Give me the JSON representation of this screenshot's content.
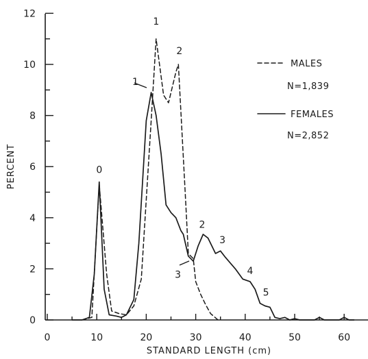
{
  "chart_data": {
    "type": "line",
    "xlabel": "STANDARD  LENGTH  (cm)",
    "ylabel": "PERCENT",
    "xlim": [
      0,
      63
    ],
    "ylim": [
      0,
      12
    ],
    "x_ticks": [
      "0",
      "10",
      "20",
      "30",
      "40",
      "50",
      "60"
    ],
    "y_ticks": [
      "0",
      "2",
      "4",
      "6",
      "8",
      "10",
      "12"
    ],
    "series": [
      {
        "name": "MALES",
        "style": "dashed",
        "x": [
          7,
          9,
          10.5,
          12,
          13,
          14.5,
          16,
          17.5,
          19,
          21,
          22,
          23.5,
          24.5,
          26,
          26.5,
          28,
          28.5,
          29.5,
          30,
          31,
          32,
          33,
          34.5
        ],
        "y": [
          0,
          0.1,
          5.3,
          1.8,
          0.35,
          0.25,
          0.2,
          0.55,
          1.6,
          7.8,
          11.0,
          8.8,
          8.5,
          9.7,
          10.0,
          4.5,
          2.6,
          2.4,
          1.5,
          1.0,
          0.6,
          0.25,
          0
        ]
      },
      {
        "name": "FEMALES",
        "style": "solid",
        "x": [
          5,
          7,
          8.5,
          9.5,
          10.5,
          11.5,
          12.5,
          14,
          15,
          16,
          17.5,
          18.5,
          20,
          21,
          22,
          23,
          24,
          25,
          26,
          27,
          27.5,
          28.5,
          29.5,
          30.5,
          31.5,
          32.5,
          34,
          35,
          36,
          38,
          39.5,
          41,
          42,
          43,
          44,
          45,
          46,
          47,
          48,
          49,
          50,
          51,
          52,
          53,
          54,
          55,
          56,
          58,
          59,
          60,
          61,
          62
        ],
        "y": [
          0,
          0,
          0.1,
          1.8,
          5.4,
          1.2,
          0.2,
          0.15,
          0.1,
          0.2,
          0.8,
          3.0,
          7.8,
          8.9,
          8.0,
          6.5,
          4.5,
          4.2,
          4.0,
          3.5,
          3.35,
          2.5,
          2.3,
          2.9,
          3.35,
          3.2,
          2.6,
          2.7,
          2.45,
          2.0,
          1.6,
          1.5,
          1.2,
          0.65,
          0.55,
          0.5,
          0.1,
          0.05,
          0.1,
          0,
          0.05,
          0,
          0,
          0,
          0,
          0.1,
          0,
          0,
          0,
          0.1,
          0,
          0
        ]
      }
    ],
    "annotations": [
      {
        "text": "0",
        "x": 10.5,
        "y": 5.75
      },
      {
        "text": "1",
        "x": 17.8,
        "y": 9.2
      },
      {
        "text": "1",
        "x": 22.0,
        "y": 11.55
      },
      {
        "text": "2",
        "x": 26.7,
        "y": 10.4
      },
      {
        "text": "2",
        "x": 31.3,
        "y": 3.6
      },
      {
        "text": "3",
        "x": 35.4,
        "y": 3.0
      },
      {
        "text": "3",
        "x": 26.4,
        "y": 1.65
      },
      {
        "text": "4",
        "x": 41.0,
        "y": 1.8
      },
      {
        "text": "5",
        "x": 44.2,
        "y": 0.95
      }
    ],
    "legend": {
      "position": "top-right",
      "entries": [
        {
          "style": "dashed",
          "label": "MALES",
          "n": "N=1,839"
        },
        {
          "style": "solid",
          "label": "FEMALES",
          "n": "N=2,852"
        }
      ]
    },
    "grid": false
  }
}
